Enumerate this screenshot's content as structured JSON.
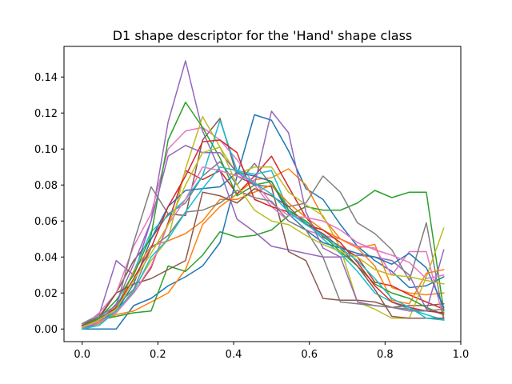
{
  "chart_data": {
    "type": "line",
    "title": "D1 shape descriptor for the 'Hand' shape class",
    "xlabel": "",
    "ylabel": "",
    "xlim": [
      -0.048,
      1.0
    ],
    "ylim": [
      -0.007,
      0.157
    ],
    "x_ticks": [
      "0.0",
      "0.2",
      "0.4",
      "0.6",
      "0.8",
      "1.0"
    ],
    "y_ticks": [
      "0.00",
      "0.02",
      "0.04",
      "0.06",
      "0.08",
      "0.10",
      "0.12",
      "0.14"
    ],
    "grid": false,
    "legend": "none",
    "x": [
      0.0,
      0.045,
      0.09,
      0.136,
      0.182,
      0.227,
      0.273,
      0.318,
      0.364,
      0.409,
      0.455,
      0.5,
      0.545,
      0.591,
      0.636,
      0.682,
      0.727,
      0.773,
      0.818,
      0.864,
      0.909,
      0.955
    ],
    "series": [
      {
        "color": "#1f77b4",
        "values": [
          0.0,
          0.0,
          0.0,
          0.013,
          0.017,
          0.024,
          0.029,
          0.035,
          0.048,
          0.085,
          0.119,
          0.116,
          0.099,
          0.078,
          0.072,
          0.058,
          0.046,
          0.038,
          0.032,
          0.023,
          0.024,
          0.029
        ]
      },
      {
        "color": "#ff7f0e",
        "values": [
          0.001,
          0.004,
          0.008,
          0.01,
          0.015,
          0.02,
          0.033,
          0.058,
          0.068,
          0.075,
          0.083,
          0.084,
          0.089,
          0.08,
          0.062,
          0.05,
          0.045,
          0.047,
          0.023,
          0.02,
          0.019,
          0.02
        ]
      },
      {
        "color": "#2ca02c",
        "values": [
          0.002,
          0.005,
          0.007,
          0.009,
          0.01,
          0.035,
          0.032,
          0.041,
          0.054,
          0.051,
          0.052,
          0.055,
          0.063,
          0.068,
          0.066,
          0.066,
          0.07,
          0.077,
          0.073,
          0.076,
          0.076,
          0.01
        ]
      },
      {
        "color": "#d62728",
        "values": [
          0.001,
          0.005,
          0.011,
          0.02,
          0.034,
          0.059,
          0.088,
          0.083,
          0.088,
          0.075,
          0.085,
          0.096,
          0.079,
          0.062,
          0.051,
          0.046,
          0.04,
          0.026,
          0.024,
          0.019,
          0.015,
          0.011
        ]
      },
      {
        "color": "#9467bd",
        "values": [
          0.003,
          0.008,
          0.038,
          0.03,
          0.06,
          0.115,
          0.149,
          0.11,
          0.088,
          0.061,
          0.054,
          0.046,
          0.044,
          0.042,
          0.04,
          0.04,
          0.041,
          0.04,
          0.038,
          0.03,
          0.011,
          0.008
        ]
      },
      {
        "color": "#8c564b",
        "values": [
          0.001,
          0.006,
          0.02,
          0.038,
          0.05,
          0.064,
          0.063,
          0.105,
          0.117,
          0.085,
          0.08,
          0.079,
          0.043,
          0.038,
          0.017,
          0.016,
          0.016,
          0.015,
          0.012,
          0.013,
          0.013,
          0.014
        ]
      },
      {
        "color": "#e377c2",
        "values": [
          0.001,
          0.009,
          0.02,
          0.046,
          0.064,
          0.1,
          0.11,
          0.112,
          0.105,
          0.094,
          0.08,
          0.068,
          0.06,
          0.055,
          0.052,
          0.05,
          0.046,
          0.045,
          0.03,
          0.043,
          0.043,
          0.005
        ]
      },
      {
        "color": "#7f7f7f",
        "values": [
          0.003,
          0.006,
          0.012,
          0.048,
          0.079,
          0.064,
          0.07,
          0.085,
          0.093,
          0.08,
          0.092,
          0.08,
          0.068,
          0.07,
          0.085,
          0.076,
          0.059,
          0.053,
          0.044,
          0.027,
          0.059,
          0.006
        ]
      },
      {
        "color": "#bcbd22",
        "values": [
          0.001,
          0.004,
          0.009,
          0.022,
          0.038,
          0.05,
          0.089,
          0.118,
          0.101,
          0.086,
          0.09,
          0.09,
          0.076,
          0.069,
          0.063,
          0.045,
          0.015,
          0.011,
          0.006,
          0.006,
          0.029,
          0.056
        ]
      },
      {
        "color": "#17becf",
        "values": [
          0.0,
          0.003,
          0.012,
          0.032,
          0.054,
          0.063,
          0.072,
          0.085,
          0.116,
          0.088,
          0.086,
          0.088,
          0.066,
          0.059,
          0.05,
          0.042,
          0.032,
          0.02,
          0.015,
          0.011,
          0.008,
          0.005
        ]
      },
      {
        "color": "#1f77b4",
        "values": [
          0.001,
          0.004,
          0.01,
          0.025,
          0.05,
          0.068,
          0.077,
          0.078,
          0.079,
          0.087,
          0.085,
          0.082,
          0.064,
          0.055,
          0.048,
          0.045,
          0.042,
          0.04,
          0.036,
          0.042,
          0.034,
          0.012
        ]
      },
      {
        "color": "#ff7f0e",
        "values": [
          0.001,
          0.003,
          0.01,
          0.032,
          0.046,
          0.049,
          0.053,
          0.06,
          0.072,
          0.072,
          0.076,
          0.08,
          0.07,
          0.062,
          0.055,
          0.05,
          0.045,
          0.035,
          0.016,
          0.014,
          0.031,
          0.033
        ]
      },
      {
        "color": "#2ca02c",
        "values": [
          0.002,
          0.006,
          0.016,
          0.03,
          0.052,
          0.105,
          0.126,
          0.112,
          0.095,
          0.074,
          0.08,
          0.082,
          0.066,
          0.06,
          0.052,
          0.043,
          0.035,
          0.025,
          0.02,
          0.017,
          0.012,
          0.008
        ]
      },
      {
        "color": "#d62728",
        "values": [
          0.001,
          0.005,
          0.012,
          0.028,
          0.045,
          0.068,
          0.085,
          0.104,
          0.105,
          0.098,
          0.072,
          0.068,
          0.065,
          0.058,
          0.055,
          0.048,
          0.037,
          0.024,
          0.015,
          0.012,
          0.01,
          0.009
        ]
      },
      {
        "color": "#9467bd",
        "values": [
          0.0,
          0.004,
          0.014,
          0.036,
          0.06,
          0.096,
          0.102,
          0.098,
          0.098,
          0.087,
          0.08,
          0.121,
          0.109,
          0.065,
          0.045,
          0.04,
          0.015,
          0.013,
          0.012,
          0.01,
          0.01,
          0.044
        ]
      },
      {
        "color": "#8c564b",
        "values": [
          0.002,
          0.007,
          0.02,
          0.025,
          0.028,
          0.033,
          0.038,
          0.076,
          0.074,
          0.07,
          0.078,
          0.074,
          0.068,
          0.058,
          0.053,
          0.045,
          0.035,
          0.022,
          0.007,
          0.006,
          0.006,
          0.006
        ]
      },
      {
        "color": "#e377c2",
        "values": [
          0.001,
          0.004,
          0.009,
          0.02,
          0.035,
          0.058,
          0.072,
          0.09,
          0.088,
          0.085,
          0.082,
          0.07,
          0.063,
          0.062,
          0.06,
          0.055,
          0.048,
          0.044,
          0.041,
          0.037,
          0.028,
          0.03
        ]
      },
      {
        "color": "#7f7f7f",
        "values": [
          0.003,
          0.007,
          0.013,
          0.022,
          0.045,
          0.052,
          0.065,
          0.066,
          0.07,
          0.077,
          0.073,
          0.071,
          0.06,
          0.055,
          0.04,
          0.015,
          0.014,
          0.013,
          0.012,
          0.011,
          0.01,
          0.011
        ]
      },
      {
        "color": "#bcbd22",
        "values": [
          0.001,
          0.005,
          0.011,
          0.027,
          0.042,
          0.058,
          0.08,
          0.098,
          0.101,
          0.08,
          0.066,
          0.06,
          0.058,
          0.052,
          0.047,
          0.043,
          0.04,
          0.033,
          0.03,
          0.029,
          0.027,
          0.025
        ]
      },
      {
        "color": "#17becf",
        "values": [
          0.0,
          0.002,
          0.01,
          0.021,
          0.04,
          0.05,
          0.065,
          0.078,
          0.09,
          0.088,
          0.081,
          0.075,
          0.065,
          0.058,
          0.052,
          0.045,
          0.038,
          0.028,
          0.017,
          0.012,
          0.006,
          0.005
        ]
      }
    ]
  }
}
